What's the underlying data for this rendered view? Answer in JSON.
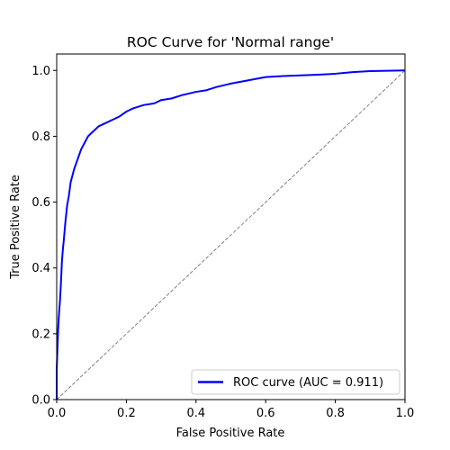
{
  "chart_data": {
    "type": "line",
    "title": "ROC Curve for 'Normal range'",
    "xlabel": "False Positive Rate",
    "ylabel": "True Positive Rate",
    "xlim": [
      0.0,
      1.0
    ],
    "ylim": [
      0.0,
      1.05
    ],
    "xticks": [
      "0.0",
      "0.2",
      "0.4",
      "0.6",
      "0.8",
      "1.0"
    ],
    "yticks": [
      "0.0",
      "0.2",
      "0.4",
      "0.6",
      "0.8",
      "1.0"
    ],
    "grid": false,
    "legend_position": "lower-right",
    "series": [
      {
        "name": "ROC curve (AUC = 0.911)",
        "color": "#0000ff",
        "style": "solid",
        "x": [
          0.0,
          0.0,
          0.002,
          0.004,
          0.006,
          0.008,
          0.01,
          0.012,
          0.015,
          0.018,
          0.02,
          0.025,
          0.03,
          0.035,
          0.04,
          0.05,
          0.06,
          0.07,
          0.08,
          0.09,
          0.1,
          0.11,
          0.12,
          0.14,
          0.16,
          0.18,
          0.2,
          0.22,
          0.25,
          0.28,
          0.3,
          0.33,
          0.36,
          0.4,
          0.43,
          0.46,
          0.5,
          0.55,
          0.6,
          0.65,
          0.7,
          0.75,
          0.8,
          0.85,
          0.9,
          0.95,
          1.0
        ],
        "y": [
          0.0,
          0.09,
          0.15,
          0.21,
          0.25,
          0.28,
          0.31,
          0.35,
          0.42,
          0.46,
          0.48,
          0.54,
          0.59,
          0.62,
          0.66,
          0.7,
          0.73,
          0.76,
          0.78,
          0.8,
          0.81,
          0.82,
          0.83,
          0.84,
          0.85,
          0.86,
          0.875,
          0.885,
          0.895,
          0.9,
          0.91,
          0.915,
          0.925,
          0.935,
          0.94,
          0.95,
          0.96,
          0.97,
          0.98,
          0.983,
          0.985,
          0.987,
          0.99,
          0.995,
          0.998,
          0.999,
          1.0
        ]
      },
      {
        "name": "",
        "color": "#808080",
        "style": "dashed",
        "x": [
          0.0,
          1.0
        ],
        "y": [
          0.0,
          1.0
        ]
      }
    ]
  }
}
